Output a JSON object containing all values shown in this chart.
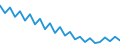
{
  "x": [
    0,
    1,
    2,
    3,
    4,
    5,
    6,
    7,
    8,
    9,
    10,
    11,
    12,
    13,
    14,
    15,
    16,
    17,
    18,
    19,
    20,
    21,
    22,
    23,
    24
  ],
  "y": [
    10.5,
    8.5,
    10.0,
    7.5,
    9.0,
    6.5,
    8.2,
    5.5,
    7.0,
    4.2,
    5.8,
    3.2,
    4.8,
    2.5,
    3.5,
    1.5,
    2.2,
    0.8,
    1.8,
    0.5,
    0.8,
    2.0,
    1.0,
    2.2,
    1.2
  ],
  "line_color": "#2196d9",
  "line_width": 1.3,
  "bg_color": "#ffffff",
  "xlim": [
    0,
    24
  ],
  "ylim": [
    0.0,
    12.0
  ]
}
